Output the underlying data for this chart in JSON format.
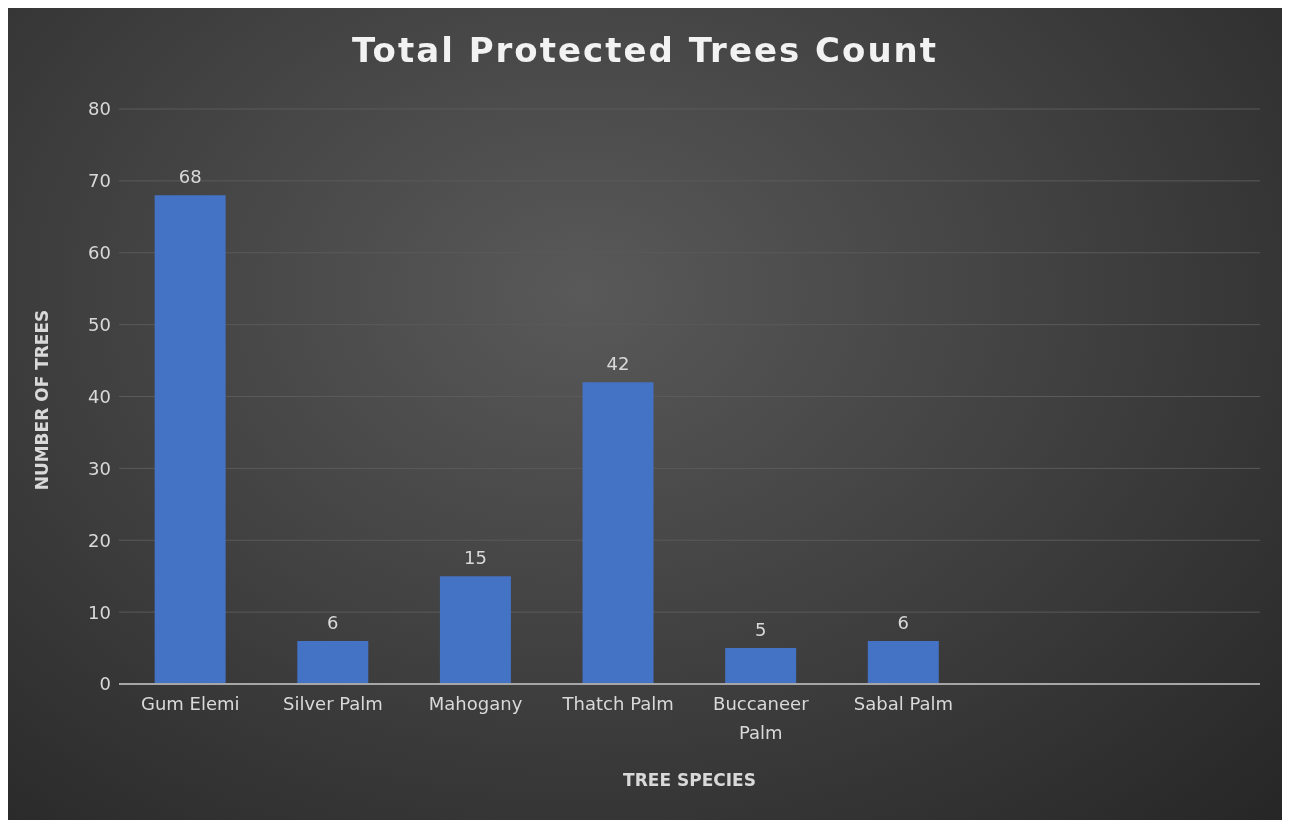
{
  "chart_data": {
    "type": "bar",
    "title": "Total Protected Trees Count",
    "xlabel": "TREE SPECIES",
    "ylabel": "NUMBER OF TREES",
    "categories": [
      "Gum Elemi",
      "Silver Palm",
      "Mahogany",
      "Thatch Palm",
      "Buccaneer Palm",
      "Sabal Palm",
      null,
      null
    ],
    "values": [
      68,
      6,
      15,
      42,
      5,
      6,
      null,
      null
    ],
    "color": "#4472c4",
    "ylim": [
      0,
      80
    ],
    "yticks": [
      0,
      10,
      20,
      30,
      40,
      50,
      60,
      70,
      80
    ],
    "grid": "y",
    "data_labels": true
  }
}
